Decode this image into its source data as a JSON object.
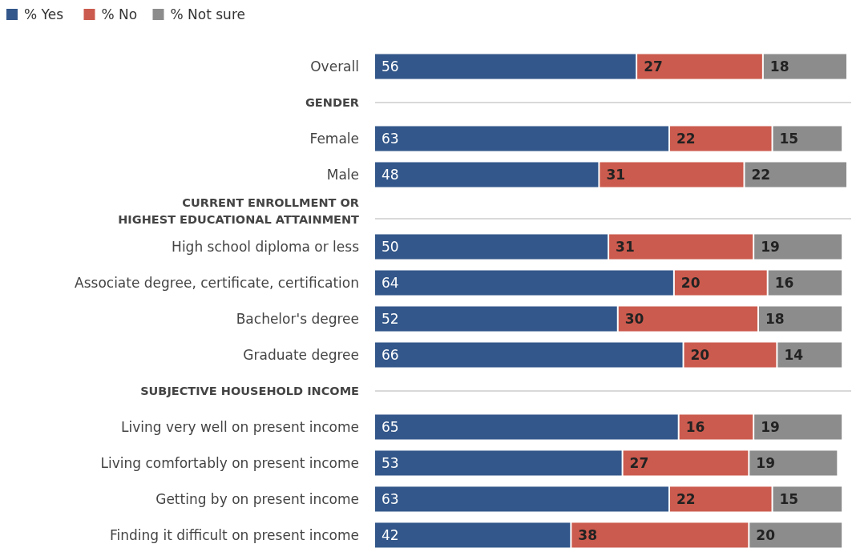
{
  "chart_data": {
    "type": "bar",
    "orientation": "horizontal",
    "stacked": true,
    "categories": [
      "Overall",
      "GENDER",
      "Female",
      "Male",
      "CURRENT ENROLLMENT OR HIGHEST EDUCATIONAL ATTAINMENT",
      "High school diploma or less",
      "Associate degree, certificate, certification",
      "Bachelor's degree",
      "Graduate degree",
      "SUBJECTIVE HOUSEHOLD INCOME",
      "Living very well on present income",
      "Living comfortably on present income",
      "Getting by on present income",
      "Finding it difficult on present income"
    ],
    "series": [
      {
        "name": "% Yes",
        "color": "#33578a",
        "values": [
          56,
          null,
          63,
          48,
          null,
          50,
          64,
          52,
          66,
          null,
          65,
          53,
          63,
          42
        ]
      },
      {
        "name": "% No",
        "color": "#cb5b4e",
        "values": [
          27,
          null,
          22,
          31,
          null,
          31,
          20,
          30,
          20,
          null,
          16,
          27,
          22,
          38
        ]
      },
      {
        "name": "% Not sure",
        "color": "#8c8c8c",
        "values": [
          18,
          null,
          15,
          22,
          null,
          19,
          16,
          18,
          14,
          null,
          19,
          19,
          15,
          20
        ]
      }
    ],
    "xlim": [
      0,
      101
    ],
    "tick_labels": "y",
    "data_labels": true,
    "legend": "top left"
  }
}
